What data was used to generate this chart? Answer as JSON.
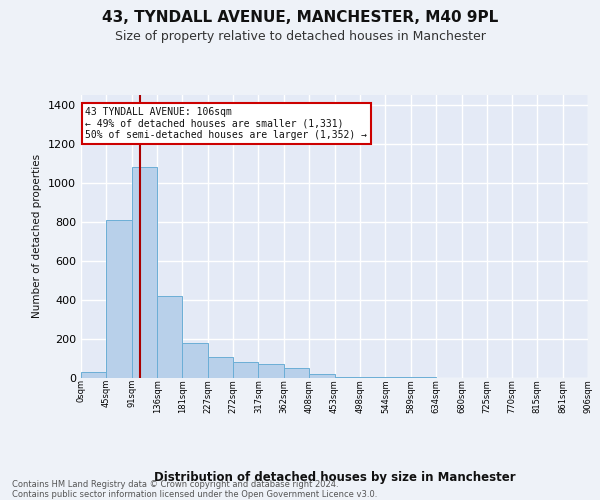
{
  "title1": "43, TYNDALL AVENUE, MANCHESTER, M40 9PL",
  "title2": "Size of property relative to detached houses in Manchester",
  "xlabel": "Distribution of detached houses by size in Manchester",
  "ylabel": "Number of detached properties",
  "bar_edges": [
    0,
    45,
    91,
    136,
    181,
    227,
    272,
    317,
    362,
    408,
    453,
    498,
    544,
    589,
    634,
    680,
    725,
    770,
    815,
    861,
    906
  ],
  "bar_heights": [
    30,
    810,
    1080,
    420,
    175,
    105,
    80,
    70,
    50,
    20,
    5,
    3,
    2,
    1,
    0,
    0,
    0,
    0,
    0,
    0
  ],
  "bar_color": "#b8d0ea",
  "bar_edge_color": "#6baed6",
  "property_line_x": 106,
  "annotation_line1": "43 TYNDALL AVENUE: 106sqm",
  "annotation_line2": "← 49% of detached houses are smaller (1,331)",
  "annotation_line3": "50% of semi-detached houses are larger (1,352) →",
  "vline_color": "#aa0000",
  "annotation_box_edge": "#cc0000",
  "background_color": "#eef2f8",
  "plot_bg_color": "#e4eaf6",
  "grid_color": "#ffffff",
  "ylim": [
    0,
    1450
  ],
  "yticks": [
    0,
    200,
    400,
    600,
    800,
    1000,
    1200,
    1400
  ],
  "tick_labels": [
    "0sqm",
    "45sqm",
    "91sqm",
    "136sqm",
    "181sqm",
    "227sqm",
    "272sqm",
    "317sqm",
    "362sqm",
    "408sqm",
    "453sqm",
    "498sqm",
    "544sqm",
    "589sqm",
    "634sqm",
    "680sqm",
    "725sqm",
    "770sqm",
    "815sqm",
    "861sqm",
    "906sqm"
  ],
  "footer_text": "Contains HM Land Registry data © Crown copyright and database right 2024.\nContains public sector information licensed under the Open Government Licence v3.0."
}
